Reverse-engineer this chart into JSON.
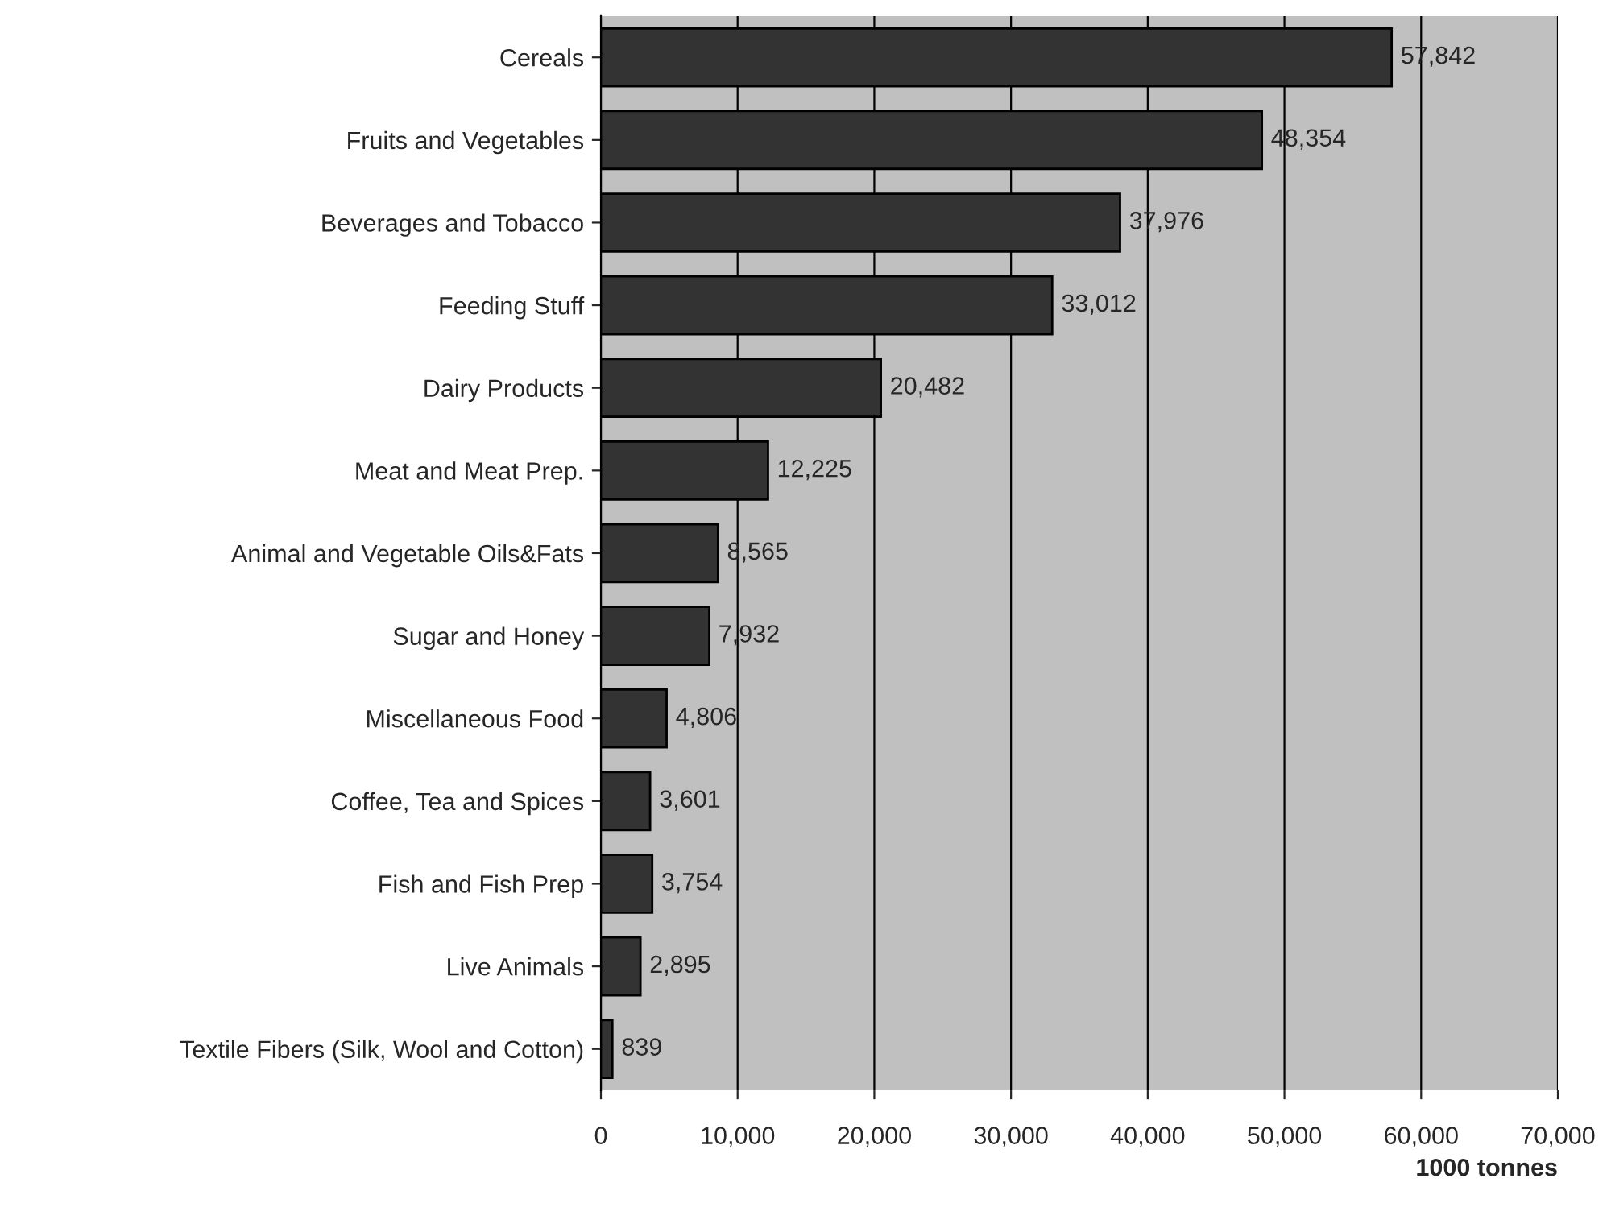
{
  "chart_data": {
    "type": "bar",
    "orientation": "horizontal",
    "xlabel": "1000 tonnes",
    "categories": [
      "Cereals",
      "Fruits and Vegetables",
      "Beverages and Tobacco",
      "Feeding Stuff",
      "Dairy Products",
      "Meat and Meat Prep.",
      "Animal and Vegetable Oils&Fats",
      "Sugar and Honey",
      "Miscellaneous Food",
      "Coffee, Tea and Spices",
      "Fish and Fish Prep",
      "Live Animals",
      "Textile Fibers (Silk, Wool and Cotton)"
    ],
    "values": [
      57842,
      48354,
      37976,
      33012,
      20482,
      12225,
      8565,
      7932,
      4806,
      3601,
      3754,
      2895,
      839
    ],
    "value_labels": [
      "57,842",
      "48,354",
      "37,976",
      "33,012",
      "20,482",
      "12,225",
      "8,565",
      "7,932",
      "4,806",
      "3,601",
      "3,754",
      "2,895",
      "839"
    ],
    "color": "#333333",
    "xlim": [
      0,
      70000
    ],
    "xticks": [
      {
        "value": 0,
        "label": "0"
      },
      {
        "value": 10000,
        "label": "10,000"
      },
      {
        "value": 20000,
        "label": "20,000"
      },
      {
        "value": 30000,
        "label": "30,000"
      },
      {
        "value": 40000,
        "label": "40,000"
      },
      {
        "value": 50000,
        "label": "50,000"
      },
      {
        "value": 60000,
        "label": "60,000"
      },
      {
        "value": 70000,
        "label": "70,000"
      }
    ],
    "grid": "x",
    "legend": false
  }
}
